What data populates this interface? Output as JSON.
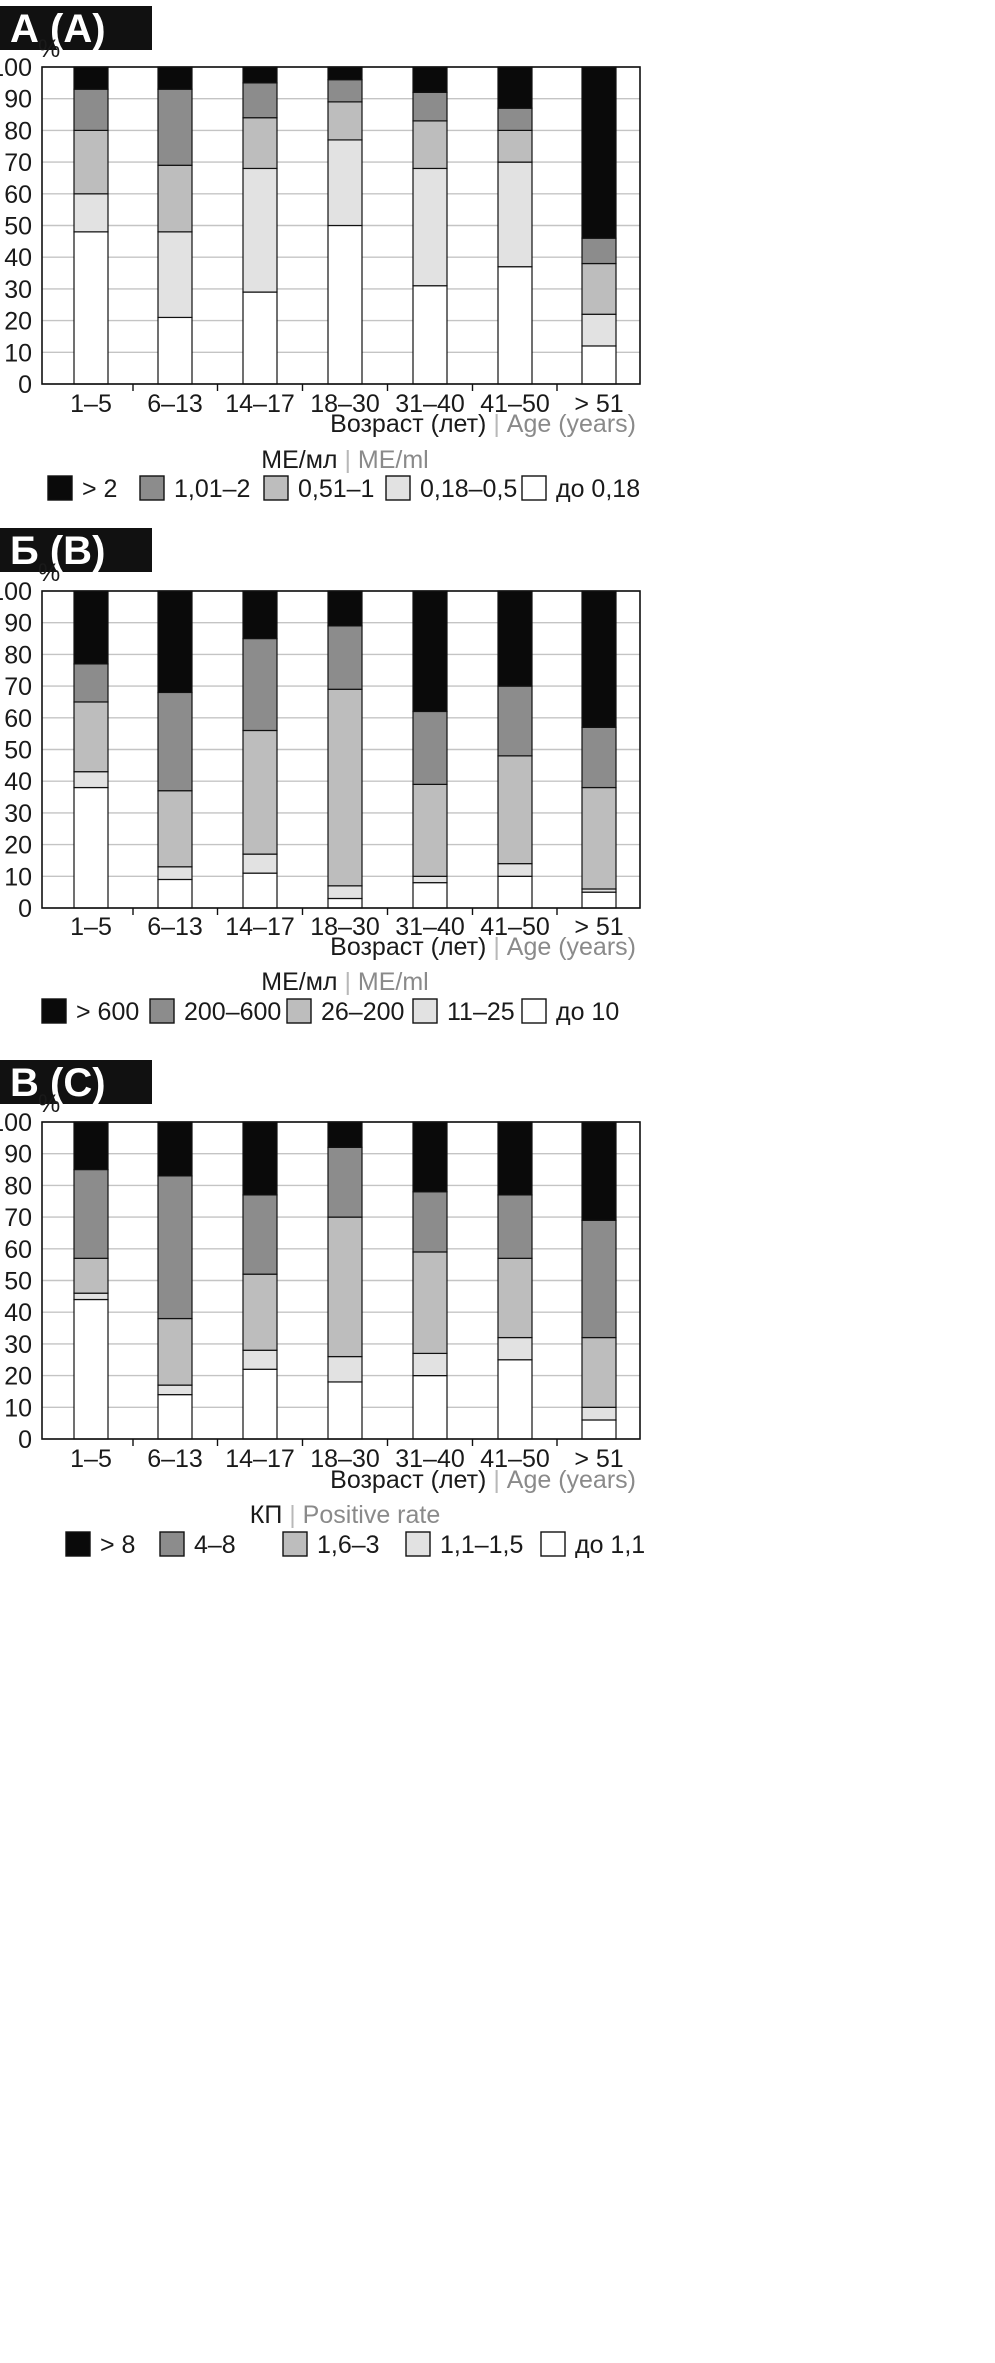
{
  "figure": {
    "xlabel_ru": "Возраст (лет)",
    "xlabel_separator": "|",
    "xlabel_en": "Age (years)",
    "y_unit": "%"
  },
  "chart_data": [
    {
      "type": "bar",
      "stacked": true,
      "panel_label": "А (A)",
      "legend_title_ru": "МЕ/мл",
      "legend_title_en": "ME/ml",
      "categories": [
        "1–5",
        "6–13",
        "14–17",
        "18–30",
        "31–40",
        "41–50",
        "> 51"
      ],
      "y_ticks": [
        "0",
        "10",
        "20",
        "30",
        "40",
        "50",
        "60",
        "70",
        "80",
        "90",
        "100"
      ],
      "ylim": [
        0,
        100
      ],
      "grid": true,
      "series": [
        {
          "name": "до 0,18",
          "color": "#ffffff",
          "values": [
            48,
            21,
            29,
            50,
            31,
            37,
            12
          ]
        },
        {
          "name": "0,18–0,5",
          "color": "#e2e2e2",
          "values": [
            12,
            27,
            39,
            27,
            37,
            33,
            10
          ]
        },
        {
          "name": "0,51–1",
          "color": "#bdbdbd",
          "values": [
            20,
            21,
            16,
            12,
            15,
            10,
            16
          ]
        },
        {
          "name": "1,01–2",
          "color": "#8c8c8c",
          "values": [
            13,
            24,
            11,
            7,
            9,
            7,
            8
          ]
        },
        {
          "name": "> 2",
          "color": "#0a0a0a",
          "values": [
            7,
            7,
            5,
            4,
            8,
            13,
            54
          ]
        }
      ]
    },
    {
      "type": "bar",
      "stacked": true,
      "panel_label": "Б (B)",
      "legend_title_ru": "МЕ/мл",
      "legend_title_en": "ME/ml",
      "categories": [
        "1–5",
        "6–13",
        "14–17",
        "18–30",
        "31–40",
        "41–50",
        "> 51"
      ],
      "y_ticks": [
        "0",
        "10",
        "20",
        "30",
        "40",
        "50",
        "60",
        "70",
        "80",
        "90",
        "100"
      ],
      "ylim": [
        0,
        100
      ],
      "grid": true,
      "series": [
        {
          "name": "до 10",
          "color": "#ffffff",
          "values": [
            38,
            9,
            11,
            3,
            8,
            10,
            5
          ]
        },
        {
          "name": "11–25",
          "color": "#e2e2e2",
          "values": [
            5,
            4,
            6,
            4,
            2,
            4,
            1
          ]
        },
        {
          "name": "26–200",
          "color": "#bdbdbd",
          "values": [
            22,
            24,
            39,
            62,
            29,
            34,
            32
          ]
        },
        {
          "name": "200–600",
          "color": "#8c8c8c",
          "values": [
            12,
            31,
            29,
            20,
            23,
            22,
            19
          ]
        },
        {
          "name": "> 600",
          "color": "#0a0a0a",
          "values": [
            23,
            32,
            15,
            11,
            38,
            30,
            43
          ]
        }
      ]
    },
    {
      "type": "bar",
      "stacked": true,
      "panel_label": "В (C)",
      "legend_title_ru": "КП",
      "legend_title_en": "Positive rate",
      "categories": [
        "1–5",
        "6–13",
        "14–17",
        "18–30",
        "31–40",
        "41–50",
        "> 51"
      ],
      "y_ticks": [
        "0",
        "10",
        "20",
        "30",
        "40",
        "50",
        "60",
        "70",
        "80",
        "90",
        "100"
      ],
      "ylim": [
        0,
        100
      ],
      "grid": true,
      "series": [
        {
          "name": "до 1,1",
          "color": "#ffffff",
          "values": [
            44,
            14,
            22,
            18,
            20,
            25,
            6
          ]
        },
        {
          "name": "1,1–1,5",
          "color": "#e2e2e2",
          "values": [
            2,
            3,
            6,
            8,
            7,
            7,
            4
          ]
        },
        {
          "name": "1,6–3",
          "color": "#bdbdbd",
          "values": [
            11,
            21,
            24,
            44,
            32,
            25,
            22
          ]
        },
        {
          "name": "4–8",
          "color": "#8c8c8c",
          "values": [
            28,
            45,
            25,
            22,
            19,
            20,
            37
          ]
        },
        {
          "name": "> 8",
          "color": "#0a0a0a",
          "values": [
            15,
            17,
            23,
            8,
            22,
            23,
            31
          ]
        }
      ]
    }
  ]
}
